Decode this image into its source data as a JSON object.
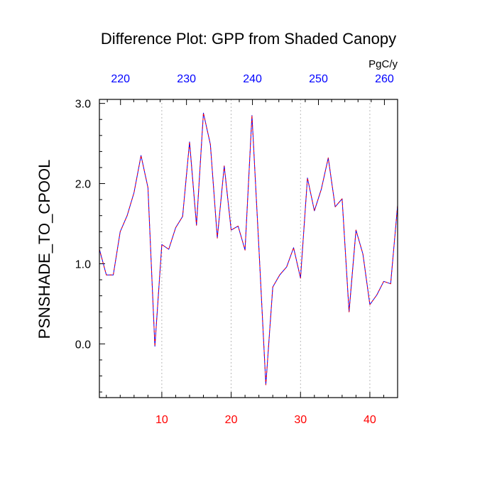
{
  "chart_data": {
    "type": "line",
    "title": "Difference Plot: GPP from Shaded Canopy",
    "ylabel": "PSNSHADE_TO_CPOOL",
    "top_axis_unit": "PgC/y",
    "xlim": [
      1,
      44
    ],
    "ylim": [
      -0.67,
      3.05
    ],
    "x_ticks": [
      10,
      20,
      30,
      40
    ],
    "y_ticks": [
      0.0,
      1.0,
      2.0,
      3.0
    ],
    "y_tick_labels": [
      "0.0",
      "1.0",
      "2.0",
      "3.0"
    ],
    "top_ticks": [
      220,
      230,
      240,
      250,
      260
    ],
    "top_axis_range": [
      216.8,
      262
    ],
    "grid": "vertical dotted at bottom ticks",
    "legend": "none",
    "colors": {
      "line": "#5a00c8",
      "bottom_ticks": "#ff0000",
      "top_ticks": "#0000ff"
    },
    "series": [
      {
        "x": [
          1,
          2,
          3,
          4,
          5,
          6,
          7,
          8,
          9,
          10,
          11,
          12,
          13,
          14,
          15,
          16,
          17,
          18,
          19,
          20,
          21,
          22,
          23,
          24,
          25,
          26,
          27,
          28,
          29,
          30,
          31,
          32,
          33,
          34,
          35,
          36,
          37,
          38,
          39,
          40,
          41,
          42,
          43,
          44
        ],
        "values": [
          1.18,
          0.86,
          0.86,
          1.4,
          1.6,
          1.89,
          2.35,
          1.95,
          -0.03,
          1.24,
          1.18,
          1.45,
          1.59,
          2.52,
          1.48,
          2.88,
          2.49,
          1.32,
          2.22,
          1.42,
          1.47,
          1.17,
          2.85,
          1.2,
          -0.51,
          0.71,
          0.86,
          0.96,
          1.2,
          0.82,
          2.07,
          1.66,
          1.93,
          2.32,
          1.71,
          1.81,
          0.4,
          1.42,
          1.12,
          0.49,
          0.61,
          0.78,
          0.75,
          1.73
        ]
      }
    ]
  }
}
